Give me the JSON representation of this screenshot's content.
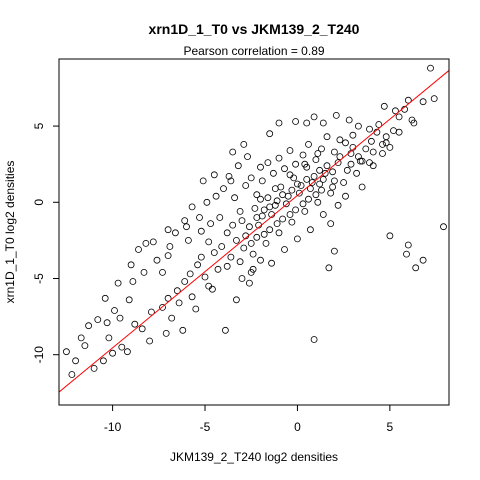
{
  "chart_data": {
    "type": "scatter",
    "title": "xrn1D_1_T0 vs JKM139_2_T240",
    "subtitle": "Pearson correlation =  0.89",
    "xlabel": "JKM139_2_T240 log2 densities",
    "ylabel": "xrn1D_1_T0 log2 densities",
    "xlim": [
      -12.9,
      8.2
    ],
    "ylim": [
      -13.3,
      9.4
    ],
    "xticks": [
      -10,
      -5,
      0,
      5
    ],
    "yticks": [
      -10,
      -5,
      0,
      5
    ],
    "xtick_labels": [
      "-10",
      "-5",
      "0",
      "5"
    ],
    "ytick_labels": [
      "-10",
      "-5",
      "0",
      "5"
    ],
    "fit_line": {
      "slope": 1.0,
      "intercept": 0.45,
      "color": "#ff0000"
    },
    "point_color": "#000000",
    "points": [
      [
        7.2,
        8.8
      ],
      [
        6.8,
        6.6
      ],
      [
        6.0,
        6.7
      ],
      [
        6.3,
        5.2
      ],
      [
        5.8,
        6.1
      ],
      [
        5.3,
        6.0
      ],
      [
        7.4,
        6.8
      ],
      [
        4.7,
        6.3
      ],
      [
        4.6,
        3.8
      ],
      [
        5.0,
        3.6
      ],
      [
        4.3,
        4.6
      ],
      [
        3.9,
        4.8
      ],
      [
        3.5,
        2.7
      ],
      [
        3.3,
        3.0
      ],
      [
        4.1,
        2.4
      ],
      [
        2.9,
        2.5
      ],
      [
        7.9,
        -1.6
      ],
      [
        6.0,
        -2.8
      ],
      [
        6.8,
        -3.8
      ],
      [
        6.4,
        -4.3
      ],
      [
        5.9,
        -3.4
      ],
      [
        5.0,
        -2.2
      ],
      [
        2.0,
        -3.2
      ],
      [
        0.9,
        -9.0
      ],
      [
        1.7,
        -4.3
      ],
      [
        1.8,
        -1.4
      ],
      [
        -2.0,
        2.3
      ],
      [
        -1.5,
        4.5
      ],
      [
        -1.0,
        5.2
      ],
      [
        -0.1,
        5.3
      ],
      [
        0.5,
        5.2
      ],
      [
        0.9,
        5.6
      ],
      [
        -2.9,
        3.8
      ],
      [
        -3.2,
        2.4
      ],
      [
        -3.5,
        3.3
      ],
      [
        -4.5,
        1.8
      ],
      [
        -5.1,
        1.4
      ],
      [
        -4.9,
        0.0
      ],
      [
        -5.7,
        -0.3
      ],
      [
        -6.1,
        -1.2
      ],
      [
        -7.0,
        -1.8
      ],
      [
        -7.8,
        -2.6
      ],
      [
        -8.2,
        -2.7
      ],
      [
        -8.6,
        -3.1
      ],
      [
        -9.0,
        -4.1
      ],
      [
        -8.9,
        -5.2
      ],
      [
        -9.7,
        -5.3
      ],
      [
        -10.4,
        -6.3
      ],
      [
        -10.3,
        -7.9
      ],
      [
        -11.3,
        -8.1
      ],
      [
        -11.7,
        -8.9
      ],
      [
        -12.0,
        -10.4
      ],
      [
        -12.2,
        -11.3
      ],
      [
        -11.0,
        -10.9
      ],
      [
        -10.5,
        -10.4
      ],
      [
        -10.2,
        -8.9
      ],
      [
        -9.5,
        -9.5
      ],
      [
        -9.2,
        -9.8
      ],
      [
        -9.6,
        -7.6
      ],
      [
        -8.8,
        -8.0
      ],
      [
        -8.4,
        -8.3
      ],
      [
        -7.9,
        -7.2
      ],
      [
        -7.3,
        -6.9
      ],
      [
        -7.0,
        -6.3
      ],
      [
        -6.5,
        -5.8
      ],
      [
        -6.1,
        -5.2
      ],
      [
        -5.8,
        -4.7
      ],
      [
        -5.4,
        -4.1
      ],
      [
        -6.8,
        -7.6
      ],
      [
        -6.2,
        -8.4
      ],
      [
        -5.5,
        -7.0
      ],
      [
        -4.8,
        -5.5
      ],
      [
        -3.8,
        -4.2
      ],
      [
        -3.9,
        -8.4
      ],
      [
        -3.3,
        -6.4
      ],
      [
        -2.6,
        -5.3
      ],
      [
        -3.0,
        -5.0
      ],
      [
        -2.5,
        -4.6
      ],
      [
        -2.0,
        -3.8
      ],
      [
        -7.0,
        -3.5
      ],
      [
        -7.3,
        -4.6
      ],
      [
        -6.6,
        -2.0
      ],
      [
        -5.9,
        -2.5
      ],
      [
        -5.2,
        -1.9
      ],
      [
        -4.8,
        -2.6
      ],
      [
        -4.5,
        -3.3
      ],
      [
        -4.2,
        -1.0
      ],
      [
        -4.0,
        0.9
      ],
      [
        -3.7,
        1.7
      ],
      [
        -3.4,
        0.3
      ],
      [
        -3.1,
        -0.6
      ],
      [
        -2.8,
        1.1
      ],
      [
        -2.5,
        1.6
      ],
      [
        -2.2,
        0.5
      ],
      [
        -1.9,
        1.4
      ],
      [
        -1.6,
        2.6
      ],
      [
        -1.3,
        1.9
      ],
      [
        -1.0,
        2.9
      ],
      [
        -0.7,
        2.2
      ],
      [
        -0.4,
        3.4
      ],
      [
        -0.1,
        2.5
      ],
      [
        0.3,
        3.1
      ],
      [
        0.6,
        3.8
      ],
      [
        1.0,
        2.8
      ],
      [
        1.3,
        3.5
      ],
      [
        1.6,
        4.3
      ],
      [
        2.0,
        3.3
      ],
      [
        2.3,
        4.1
      ],
      [
        2.6,
        3.9
      ],
      [
        3.0,
        4.4
      ],
      [
        3.3,
        5.0
      ],
      [
        3.7,
        3.5
      ],
      [
        4.0,
        4.0
      ],
      [
        4.4,
        5.1
      ],
      [
        4.8,
        4.3
      ],
      [
        5.2,
        4.7
      ],
      [
        5.5,
        5.6
      ],
      [
        2.8,
        5.4
      ],
      [
        2.1,
        5.7
      ],
      [
        1.4,
        5.2
      ],
      [
        -2.7,
        3.0
      ],
      [
        -3.6,
        1.4
      ],
      [
        -4.4,
        0.4
      ],
      [
        -5.3,
        -1.0
      ],
      [
        -6.0,
        -1.6
      ],
      [
        -6.9,
        -2.9
      ],
      [
        -7.6,
        -3.8
      ],
      [
        -8.3,
        -4.6
      ],
      [
        -9.1,
        -6.4
      ],
      [
        -9.9,
        -7.1
      ],
      [
        -10.8,
        -7.7
      ],
      [
        -11.5,
        -9.4
      ],
      [
        -12.5,
        -9.8
      ],
      [
        -10.0,
        -9.9
      ],
      [
        -8.0,
        -9.1
      ],
      [
        -7.1,
        -8.6
      ],
      [
        -6.4,
        -6.6
      ],
      [
        -5.7,
        -6.2
      ],
      [
        -5.0,
        -4.9
      ],
      [
        -4.3,
        -4.4
      ],
      [
        -3.6,
        -3.6
      ],
      [
        -2.9,
        -3.0
      ],
      [
        -2.2,
        -2.3
      ],
      [
        -1.5,
        -1.8
      ],
      [
        -0.8,
        -1.1
      ],
      [
        -0.1,
        -0.5
      ],
      [
        0.6,
        0.2
      ],
      [
        1.3,
        0.8
      ],
      [
        2.0,
        1.4
      ],
      [
        2.7,
        2.1
      ],
      [
        3.4,
        2.7
      ],
      [
        4.1,
        3.3
      ],
      [
        4.8,
        3.9
      ],
      [
        5.5,
        4.6
      ],
      [
        6.2,
        5.4
      ],
      [
        -3.3,
        -2.5
      ],
      [
        -2.6,
        -1.6
      ],
      [
        -1.9,
        -0.9
      ],
      [
        -1.2,
        -0.2
      ],
      [
        -0.5,
        0.4
      ],
      [
        0.2,
        1.1
      ],
      [
        0.9,
        1.7
      ],
      [
        1.6,
        2.4
      ],
      [
        2.3,
        3.0
      ],
      [
        3.0,
        3.6
      ],
      [
        -2.4,
        -3.4
      ],
      [
        -1.7,
        -2.7
      ],
      [
        -1.0,
        -2.0
      ],
      [
        -0.3,
        -1.3
      ],
      [
        0.4,
        -0.6
      ],
      [
        1.1,
        0.0
      ],
      [
        1.8,
        0.6
      ],
      [
        2.5,
        1.3
      ],
      [
        3.2,
        1.9
      ],
      [
        3.9,
        2.6
      ],
      [
        4.6,
        3.2
      ],
      [
        -3.0,
        -1.2
      ],
      [
        -2.3,
        -0.4
      ],
      [
        -1.6,
        0.3
      ],
      [
        -0.9,
        1.0
      ],
      [
        -0.2,
        1.6
      ],
      [
        0.5,
        2.3
      ],
      [
        1.2,
        2.1
      ],
      [
        1.9,
        1.0
      ],
      [
        2.6,
        0.4
      ],
      [
        0.0,
        -2.4
      ],
      [
        -0.7,
        -3.1
      ],
      [
        -1.4,
        -4.0
      ],
      [
        0.7,
        -1.8
      ],
      [
        1.4,
        -0.8
      ],
      [
        2.2,
        -0.2
      ],
      [
        3.5,
        1.0
      ],
      [
        -3.8,
        -2.0
      ],
      [
        -4.1,
        -2.9
      ],
      [
        -3.5,
        -1.5
      ],
      [
        -2.8,
        -2.2
      ],
      [
        -2.1,
        -1.5
      ],
      [
        -1.4,
        -0.8
      ],
      [
        -0.6,
        -0.1
      ],
      [
        0.1,
        0.6
      ],
      [
        0.8,
        1.3
      ],
      [
        1.5,
        1.9
      ],
      [
        2.2,
        2.6
      ],
      [
        2.9,
        3.2
      ],
      [
        -2.0,
        0.2
      ],
      [
        -1.2,
        0.9
      ],
      [
        -0.4,
        1.8
      ],
      [
        0.4,
        2.5
      ],
      [
        1.1,
        3.2
      ],
      [
        -1.8,
        -0.5
      ],
      [
        -1.1,
        0.1
      ],
      [
        -0.3,
        0.8
      ],
      [
        0.5,
        1.5
      ],
      [
        1.2,
        1.2
      ],
      [
        1.9,
        2.0
      ],
      [
        -2.2,
        -1.0
      ],
      [
        -1.5,
        -0.3
      ],
      [
        -0.8,
        0.5
      ],
      [
        0.0,
        1.2
      ],
      [
        0.7,
        0.9
      ],
      [
        1.4,
        1.5
      ],
      [
        -2.5,
        -2.7
      ],
      [
        -1.8,
        -2.1
      ],
      [
        -1.1,
        -1.4
      ],
      [
        -0.4,
        -0.8
      ],
      [
        0.3,
        -0.1
      ],
      [
        1.0,
        0.5
      ],
      [
        -3.1,
        -3.9
      ],
      [
        -2.4,
        -4.4
      ],
      [
        -4.6,
        -5.7
      ],
      [
        -5.2,
        -3.6
      ],
      [
        -4.7,
        -1.4
      ]
    ]
  }
}
